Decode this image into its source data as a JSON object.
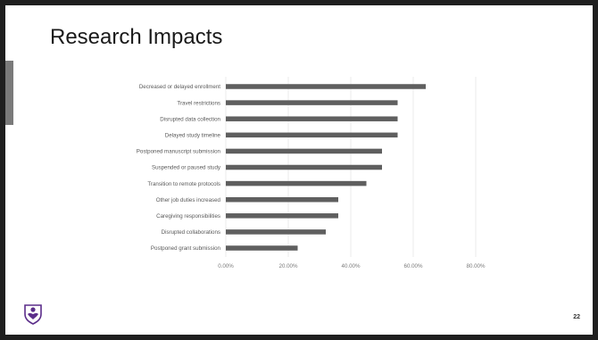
{
  "slide": {
    "title": "Research Impacts",
    "page_number": "22",
    "logo_icon": "shield-logo-icon"
  },
  "chart_data": {
    "type": "bar",
    "orientation": "horizontal",
    "categories": [
      "Decreased or delayed enrollment",
      "Travel restrictions",
      "Disrupted data collection",
      "Delayed study timeline",
      "Postponed manuscript submission",
      "Suspended or paused study",
      "Transition to remote protocols",
      "Other job duties increased",
      "Caregiving responsibilities",
      "Disrupted collaborations",
      "Postponed grant submission"
    ],
    "values": [
      64,
      55,
      55,
      55,
      50,
      50,
      45,
      36,
      36,
      32,
      23
    ],
    "xlim": [
      0,
      80
    ],
    "ticks": [
      "0.00%",
      "20.00%",
      "40.00%",
      "60.00%",
      "80.00%"
    ],
    "grid": true,
    "bar_color": "#5f5f5f"
  }
}
